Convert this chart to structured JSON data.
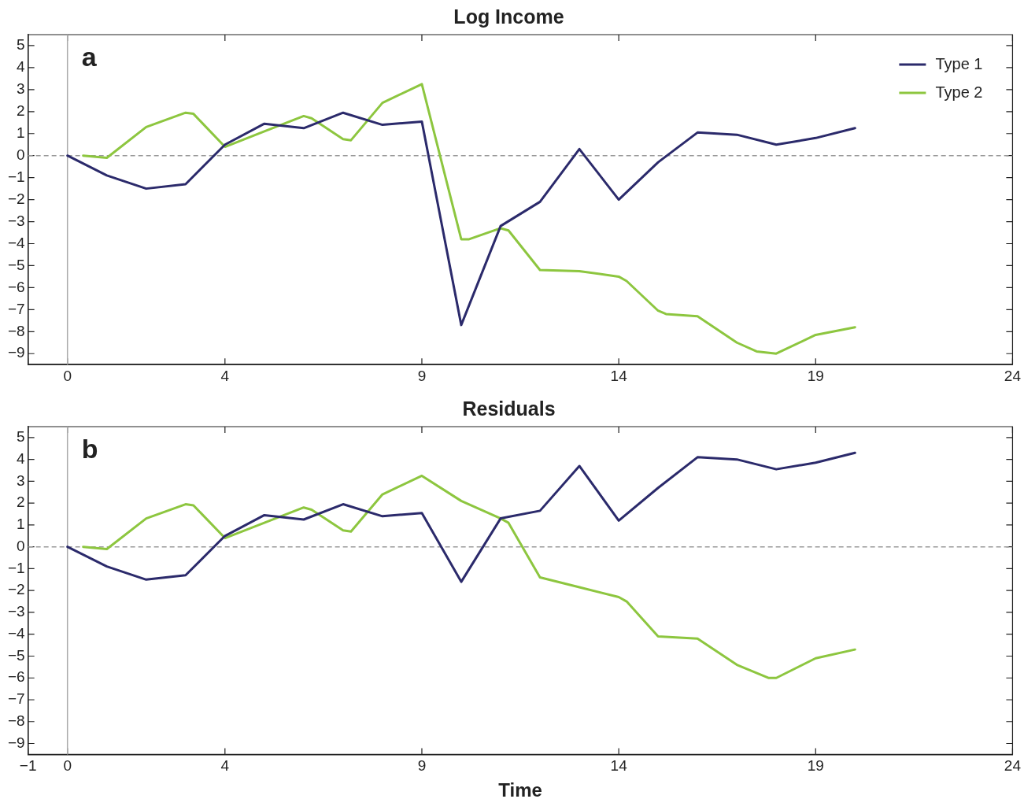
{
  "chart_data": [
    {
      "type": "line",
      "title": "Log Income",
      "xlim": [
        -1,
        24
      ],
      "xticks": [
        {
          "value": -1,
          "label": null
        },
        0,
        4,
        9,
        14,
        19,
        24
      ],
      "ylim": [
        -9.5,
        5.5
      ],
      "yticks": [
        -9,
        -8,
        -7,
        -6,
        -5,
        -4,
        -3,
        -2,
        -1,
        0,
        1,
        2,
        3,
        4,
        5
      ],
      "grid": false,
      "legend": "top right",
      "marker": "none",
      "line_style": "solid",
      "annotations": [
        "a"
      ],
      "ref_lines": [
        {
          "axis": "x",
          "value": 0,
          "color": "#aaaaaa",
          "line_style": "solid"
        },
        {
          "axis": "y",
          "value": 0,
          "color": "#999999",
          "line_style": "dashed"
        }
      ],
      "series": [
        {
          "name": "Type 1",
          "color": "#2b2a6b",
          "x": [
            0,
            1,
            2,
            3,
            4,
            5,
            6,
            7,
            8,
            9,
            10,
            11,
            12,
            13,
            14,
            15,
            16,
            17,
            18,
            19,
            20
          ],
          "values": [
            0,
            -0.9,
            -1.5,
            -1.3,
            0.5,
            1.45,
            1.25,
            1.95,
            1.4,
            1.55,
            -7.7,
            -3.2,
            -2.1,
            0.3,
            -2.0,
            -0.3,
            1.05,
            0.95,
            0.5,
            0.8,
            1.25
          ]
        },
        {
          "name": "Type 2",
          "color": "#8dc63f",
          "x": [
            0.4,
            1,
            2,
            3,
            3.2,
            4,
            5,
            6,
            6.2,
            7,
            7.2,
            8,
            9,
            10,
            10.2,
            11,
            11.2,
            12,
            13,
            14,
            14.2,
            15,
            15.2,
            16,
            17,
            17.5,
            18,
            19,
            20
          ],
          "values": [
            0,
            -0.1,
            1.3,
            1.95,
            1.9,
            0.4,
            1.1,
            1.8,
            1.7,
            0.75,
            0.7,
            2.4,
            3.25,
            -3.8,
            -3.8,
            -3.3,
            -3.4,
            -5.2,
            -5.25,
            -5.5,
            -5.7,
            -7.05,
            -7.2,
            -7.3,
            -8.5,
            -8.9,
            -9.0,
            -8.15,
            -7.8
          ]
        }
      ]
    },
    {
      "type": "line",
      "title": "Residuals",
      "xlabel": "Time",
      "xlim": [
        -1,
        24
      ],
      "xticks": [
        -1,
        0,
        4,
        9,
        14,
        19,
        24
      ],
      "ylim": [
        -9.5,
        5.5
      ],
      "yticks": [
        -9,
        -8,
        -7,
        -6,
        -5,
        -4,
        -3,
        -2,
        -1,
        0,
        1,
        2,
        3,
        4,
        5
      ],
      "grid": false,
      "marker": "none",
      "line_style": "solid",
      "annotations": [
        "b"
      ],
      "ref_lines": [
        {
          "axis": "x",
          "value": 0,
          "color": "#aaaaaa",
          "line_style": "solid"
        },
        {
          "axis": "y",
          "value": 0,
          "color": "#999999",
          "line_style": "dashed"
        }
      ],
      "series": [
        {
          "color": "#2b2a6b",
          "x": [
            0,
            1,
            2,
            3,
            4,
            5,
            6,
            7,
            8,
            9,
            10,
            11,
            12,
            13,
            14,
            15,
            16,
            17,
            18,
            19,
            20
          ],
          "values": [
            0,
            -0.9,
            -1.5,
            -1.3,
            0.5,
            1.45,
            1.25,
            1.95,
            1.4,
            1.55,
            -1.6,
            1.3,
            1.65,
            3.7,
            1.2,
            2.7,
            4.1,
            4.0,
            3.55,
            3.85,
            4.3
          ]
        },
        {
          "color": "#8dc63f",
          "x": [
            0.4,
            1,
            2,
            3,
            3.2,
            4,
            5,
            6,
            6.2,
            7,
            7.2,
            8,
            9,
            10,
            11,
            11.2,
            12,
            13,
            14,
            14.2,
            15,
            16,
            17,
            17.8,
            18,
            19,
            20
          ],
          "values": [
            0,
            -0.1,
            1.3,
            1.95,
            1.9,
            0.4,
            1.1,
            1.8,
            1.7,
            0.75,
            0.7,
            2.4,
            3.25,
            2.1,
            1.3,
            1.1,
            -1.4,
            -1.85,
            -2.3,
            -2.5,
            -4.1,
            -4.2,
            -5.4,
            -6.0,
            -6.0,
            -5.1,
            -4.7
          ]
        }
      ]
    }
  ]
}
